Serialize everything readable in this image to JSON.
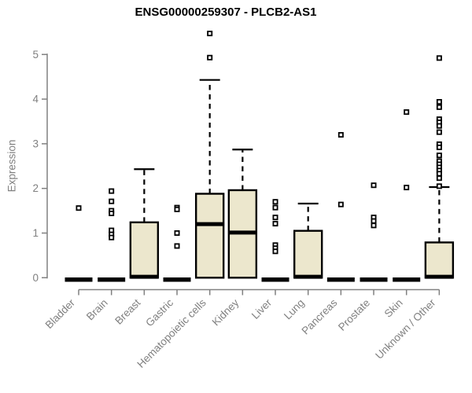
{
  "chart_data": {
    "type": "boxplot",
    "title": "ENSG00000259307 - PLCB2-AS1",
    "ylabel": "Expression",
    "xlabel": "",
    "ylim": [
      0,
      5.5
    ],
    "yticks": [
      0,
      1,
      2,
      3,
      4,
      5
    ],
    "grid": false,
    "legend": "none",
    "axis_color": "#808080",
    "box_fill": "#ece7cd",
    "box_stroke": "#000000",
    "categories": [
      "Bladder",
      "Brain",
      "Breast",
      "Gastric",
      "Hematopoietic cells",
      "Kidney",
      "Liver",
      "Lung",
      "Pancreas",
      "Prostate",
      "Skin",
      "Unknown / Other"
    ],
    "boxes": [
      {
        "label": "Bladder",
        "q1": 0,
        "median": 0,
        "q3": 0,
        "whisker_low": 0,
        "whisker_high": 0,
        "outliers": [
          1.56
        ]
      },
      {
        "label": "Brain",
        "q1": 0,
        "median": 0,
        "q3": 0,
        "whisker_low": 0,
        "whisker_high": 0,
        "outliers": [
          1.94,
          1.71,
          1.5,
          1.44,
          1.06,
          0.97,
          0.9
        ]
      },
      {
        "label": "Breast",
        "q1": 0,
        "median": 0.02,
        "q3": 1.24,
        "whisker_low": 0,
        "whisker_high": 2.43,
        "outliers": []
      },
      {
        "label": "Gastric",
        "q1": 0,
        "median": 0,
        "q3": 0,
        "whisker_low": 0,
        "whisker_high": 0,
        "outliers": [
          1.57,
          1.53,
          1.0,
          0.71
        ]
      },
      {
        "label": "Hematopoietic cells",
        "q1": 0,
        "median": 1.2,
        "q3": 1.88,
        "whisker_low": 0,
        "whisker_high": 4.43,
        "outliers": [
          5.47,
          4.93
        ]
      },
      {
        "label": "Kidney",
        "q1": 0,
        "median": 1.01,
        "q3": 1.96,
        "whisker_low": 0,
        "whisker_high": 2.87,
        "outliers": []
      },
      {
        "label": "Liver",
        "q1": 0,
        "median": 0,
        "q3": 0,
        "whisker_low": 0,
        "whisker_high": 0,
        "outliers": [
          1.7,
          1.57,
          1.35,
          1.21,
          0.73,
          0.66,
          0.59
        ]
      },
      {
        "label": "Lung",
        "q1": 0,
        "median": 0.02,
        "q3": 1.05,
        "whisker_low": 0,
        "whisker_high": 1.66,
        "outliers": []
      },
      {
        "label": "Pancreas",
        "q1": 0,
        "median": 0,
        "q3": 0,
        "whisker_low": 0,
        "whisker_high": 0,
        "outliers": [
          3.2,
          1.64
        ]
      },
      {
        "label": "Prostate",
        "q1": 0,
        "median": 0,
        "q3": 0,
        "whisker_low": 0,
        "whisker_high": 0,
        "outliers": [
          2.07,
          1.35,
          1.27,
          1.17
        ]
      },
      {
        "label": "Skin",
        "q1": 0,
        "median": 0,
        "q3": 0,
        "whisker_low": 0,
        "whisker_high": 0,
        "outliers": [
          3.71,
          2.02
        ]
      },
      {
        "label": "Unknown / Other",
        "q1": 0,
        "median": 0.02,
        "q3": 0.79,
        "whisker_low": 0,
        "whisker_high": 2.03,
        "outliers": [
          4.92,
          3.94,
          3.82,
          3.55,
          3.48,
          3.4,
          3.26,
          2.99,
          2.92,
          2.74,
          2.61,
          2.54,
          2.47,
          2.4,
          2.33,
          2.23,
          2.05
        ]
      }
    ]
  }
}
